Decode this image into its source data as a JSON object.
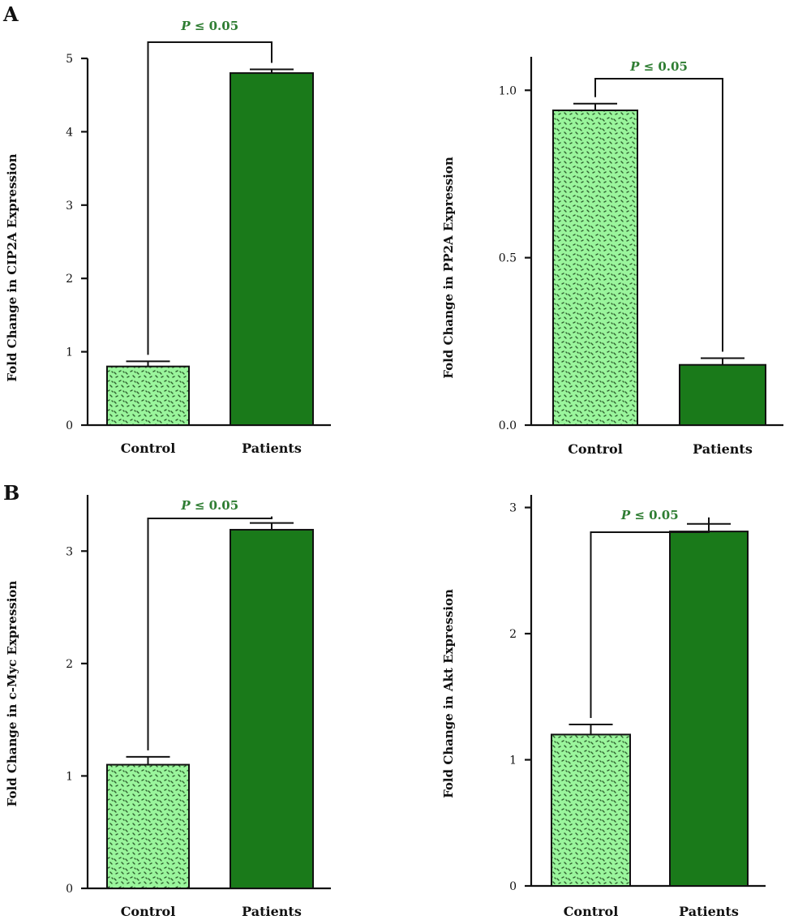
{
  "panel_labels": [
    "A",
    "B"
  ],
  "significance_p": "P",
  "significance_rest": " ≤ 0.05",
  "colors": {
    "control_fill": "#9af59c",
    "control_dots": "#2e5e2e",
    "patients_fill": "#1a7a1a",
    "significance_text": "#2e7d32"
  },
  "chart_data": [
    {
      "type": "bar",
      "categories": [
        "Control",
        "Patients"
      ],
      "values": [
        0.8,
        4.8
      ],
      "errors": [
        0.07,
        0.05
      ],
      "ylabel": "Fold Change in CIP2A Expression",
      "ylim": [
        0,
        5
      ],
      "yticks": [
        "0",
        "1",
        "2",
        "3",
        "4",
        "5"
      ],
      "significance": "P ≤ 0.05",
      "grid": false
    },
    {
      "type": "bar",
      "categories": [
        "Control",
        "Patients"
      ],
      "values": [
        0.94,
        0.18
      ],
      "errors": [
        0.02,
        0.02
      ],
      "ylabel": "Fold Change in PP2A Expression",
      "ylim": [
        0,
        1.1
      ],
      "yticks": [
        "0.0",
        "0.5",
        "1.0"
      ],
      "significance": "P ≤ 0.05",
      "grid": false
    },
    {
      "type": "bar",
      "categories": [
        "Control",
        "Patients"
      ],
      "values": [
        1.1,
        3.19
      ],
      "errors": [
        0.07,
        0.06
      ],
      "ylabel": "Fold Change in c-Myc Expression",
      "ylim": [
        0,
        3.5
      ],
      "yticks": [
        "0",
        "1",
        "2",
        "3"
      ],
      "significance": "P ≤ 0.05",
      "grid": false
    },
    {
      "type": "bar",
      "categories": [
        "Control",
        "Patients"
      ],
      "values": [
        1.2,
        2.81
      ],
      "errors": [
        0.08,
        0.06
      ],
      "ylabel": "Fold Change in Akt Expression",
      "ylim": [
        0,
        3.1
      ],
      "yticks": [
        "0",
        "1",
        "2",
        "3"
      ],
      "significance": "P ≤ 0.05",
      "grid": false
    }
  ]
}
